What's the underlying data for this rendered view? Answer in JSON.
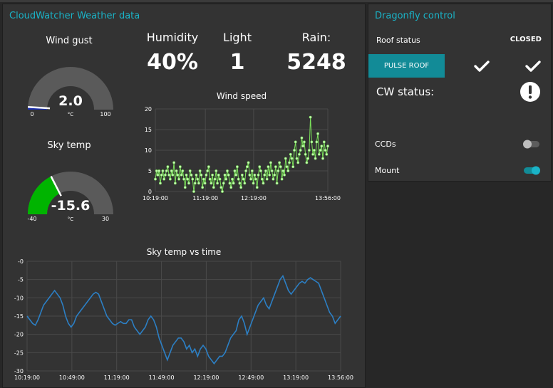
{
  "weather": {
    "title": "CloudWatcher Weather data",
    "wind_gust": {
      "label": "Wind gust",
      "value": "2.0",
      "unit": "°C",
      "min": "0",
      "max": "100",
      "fraction": 0.02
    },
    "sky_temp": {
      "label": "Sky temp",
      "value": "-15.6",
      "unit": "°C",
      "min": "-40",
      "max": "30",
      "fraction": 0.349
    },
    "humidity": {
      "label": "Humidity",
      "value": "40%"
    },
    "light": {
      "label": "Light",
      "value": "1"
    },
    "rain": {
      "label": "Rain:",
      "value": "5248"
    }
  },
  "dragonfly": {
    "title": "Dragonfly control",
    "roof_status_label": "Roof status",
    "roof_status_value": "CLOSED",
    "pulse_roof_label": "PULSE ROOF",
    "cw_status_label": "CW status:",
    "ccds_label": "CCDs",
    "ccds_on": false,
    "mount_label": "Mount",
    "mount_on": true,
    "accent": "#128b97"
  },
  "chart_data": [
    {
      "type": "line",
      "title": "Wind speed",
      "x_ticks": [
        "10:19:00",
        "11:19:00",
        "12:19:00",
        "13:56:00"
      ],
      "y_ticks": [
        "0",
        "5",
        "10",
        "15",
        "20"
      ],
      "ylim": [
        0,
        20
      ],
      "x_range": [
        "10:19:00",
        "13:56:00"
      ],
      "series": [
        {
          "color": "#7be35a",
          "values": [
            3,
            5,
            4,
            5,
            2,
            4,
            5,
            3,
            4,
            5,
            6,
            4,
            3,
            5,
            4,
            7,
            2,
            5,
            4,
            3,
            6,
            4,
            5,
            3,
            1,
            4,
            3,
            2,
            5,
            4,
            3,
            0,
            2,
            4,
            3,
            2,
            5,
            4,
            1,
            3,
            2,
            4,
            5,
            6,
            3,
            2,
            4,
            1,
            3,
            5,
            2,
            4,
            3,
            1,
            0,
            2,
            4,
            3,
            5,
            4,
            2,
            1,
            3,
            2,
            5,
            4,
            6,
            3,
            2,
            1,
            4,
            3,
            2,
            5,
            6,
            7,
            4,
            3,
            5,
            2,
            4,
            3,
            1,
            4,
            6,
            5,
            3,
            2,
            4,
            5,
            3,
            6,
            4,
            7,
            5,
            3,
            4,
            6,
            2,
            5,
            7,
            6,
            3,
            5,
            4,
            8,
            6,
            5,
            7,
            9,
            8,
            6,
            10,
            12,
            8,
            7,
            9,
            10,
            13,
            11,
            12,
            9,
            7,
            8,
            10,
            18,
            12,
            9,
            10,
            8,
            12,
            14,
            9,
            10,
            11,
            8,
            12,
            10,
            9,
            11
          ]
        }
      ],
      "grid": true
    },
    {
      "type": "line",
      "title": "Sky temp vs time",
      "x_ticks": [
        "10:19:00",
        "10:49:00",
        "11:19:00",
        "11:49:00",
        "12:19:00",
        "12:49:00",
        "13:19:00",
        "13:56:00"
      ],
      "y_ticks": [
        "-0",
        "-5",
        "-10",
        "-15",
        "-20",
        "-25",
        "-30"
      ],
      "ylim": [
        -30,
        0
      ],
      "x_range": [
        "10:19:00",
        "13:56:00"
      ],
      "series": [
        {
          "color": "#2c7fc4",
          "values": [
            -15,
            -16,
            -17,
            -17.5,
            -16,
            -14,
            -12,
            -11,
            -10,
            -9,
            -8,
            -9,
            -10,
            -12,
            -15,
            -17,
            -18,
            -17,
            -15,
            -14,
            -13,
            -12,
            -11,
            -10,
            -9,
            -8.5,
            -9,
            -11,
            -13,
            -15,
            -16,
            -17,
            -17.5,
            -17,
            -16.5,
            -17,
            -17,
            -16,
            -16,
            -18,
            -19,
            -20,
            -19,
            -18,
            -16,
            -15,
            -16,
            -18,
            -21,
            -23,
            -25,
            -27,
            -25,
            -23,
            -22,
            -21,
            -21,
            -22,
            -24,
            -23,
            -25,
            -24,
            -26,
            -24,
            -23,
            -24,
            -26,
            -27,
            -28,
            -27,
            -26,
            -26,
            -25,
            -23,
            -21,
            -20,
            -19,
            -16,
            -15,
            -17,
            -20,
            -18,
            -16,
            -14,
            -12,
            -11,
            -10,
            -12,
            -13,
            -11,
            -9,
            -7,
            -5,
            -4,
            -6,
            -8,
            -9,
            -8,
            -7,
            -6,
            -5.5,
            -6,
            -5,
            -4.5,
            -5,
            -5.5,
            -6,
            -8,
            -10,
            -12,
            -14,
            -15,
            -17,
            -16,
            -15
          ]
        }
      ],
      "grid": true
    }
  ]
}
